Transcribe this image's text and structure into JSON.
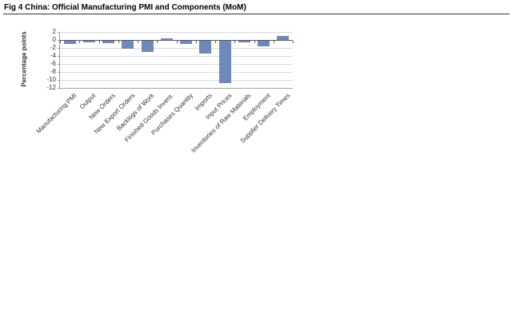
{
  "title": "Fig 4 China: Official Manufacturing PMI and Components (MoM)",
  "chart_data": {
    "type": "bar",
    "title": "Fig 4 China: Official Manufacturing PMI and Components (MoM)",
    "categories": [
      "Manufacturing PMI",
      "Output",
      "New Orders",
      "New Export Orders",
      "Backlogs of Work",
      "Finished Goods Invent.",
      "Purchases Quantity",
      "Imports",
      "Input Prices",
      "Inventories of Raw Materials",
      "Employment",
      "Supplier Delivery Times"
    ],
    "values": [
      -0.9,
      -0.5,
      -0.8,
      -2.2,
      -3.0,
      0.5,
      -0.9,
      -3.3,
      -10.8,
      -0.5,
      -1.5,
      1.1
    ],
    "xlabel": "",
    "ylabel": "Percentage points",
    "ylim": [
      -12,
      2
    ],
    "ytick_step": 2,
    "ytick_labels": [
      "2",
      "0",
      "-2",
      "-4",
      "-6",
      "-8",
      "-10",
      "-12"
    ],
    "grid": true,
    "legend_position": "none",
    "bar_color": "#6D89BB",
    "gridline_color": "#D9D9D9",
    "zero_line_color": "#595959",
    "axis_color": "#999999"
  }
}
